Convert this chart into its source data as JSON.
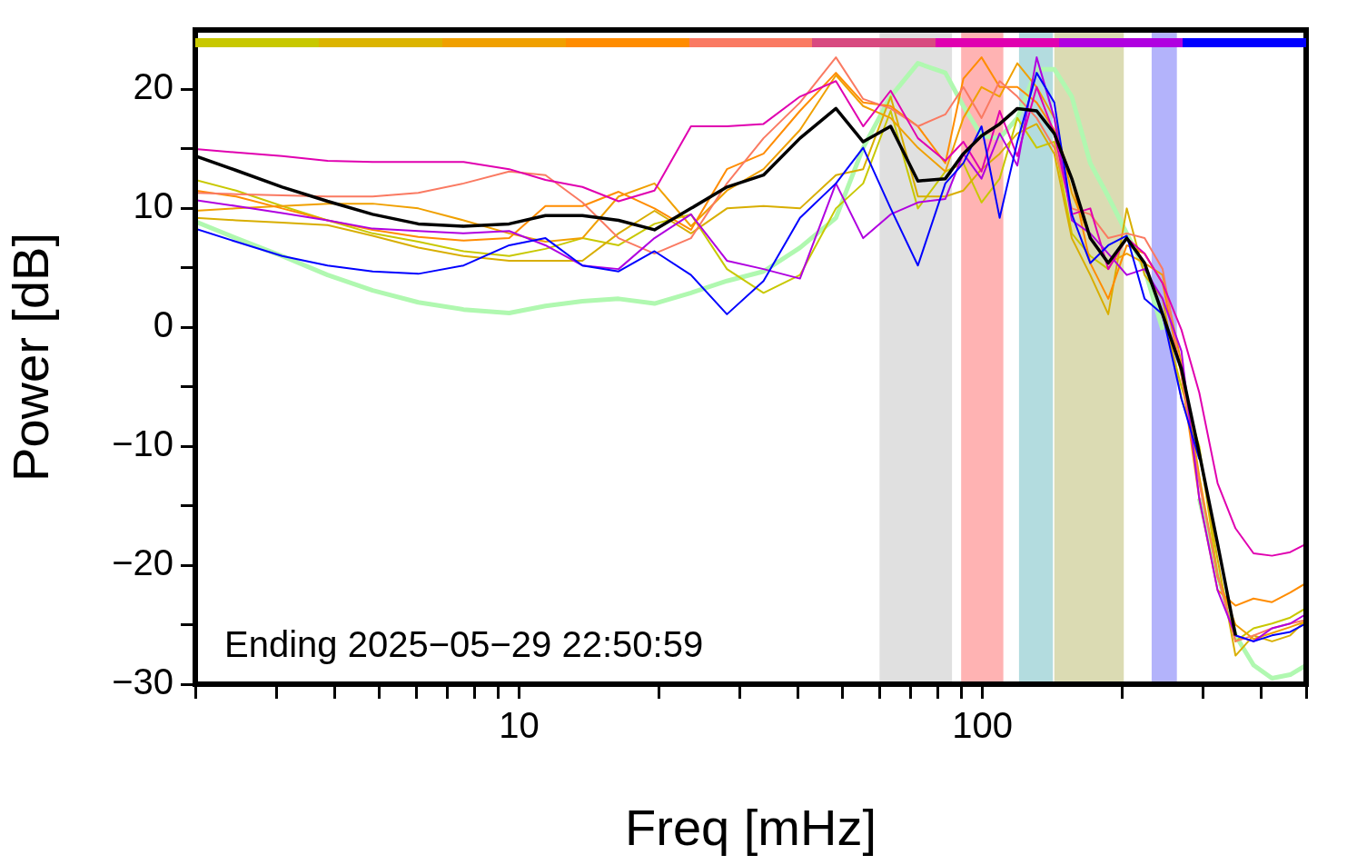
{
  "chart_data": {
    "type": "line",
    "xlabel": "Freq [mHz]",
    "ylabel": "Power [dB]",
    "log": "x",
    "grid": false,
    "legend": false,
    "marker": "none",
    "line_style": "solid",
    "annotations": [
      "Ending 2025−05−29 22:50:59"
    ],
    "xlim": [
      2,
      500
    ],
    "xticks": [
      {
        "value": 2,
        "label": null
      },
      {
        "value": 3,
        "label": null
      },
      {
        "value": 4,
        "label": null
      },
      {
        "value": 5,
        "label": null
      },
      {
        "value": 6,
        "label": null
      },
      {
        "value": 7,
        "label": null
      },
      {
        "value": 8,
        "label": null
      },
      {
        "value": 9,
        "label": null
      },
      10,
      {
        "value": 20,
        "label": null
      },
      {
        "value": 30,
        "label": null
      },
      {
        "value": 40,
        "label": null
      },
      {
        "value": 50,
        "label": null
      },
      {
        "value": 60,
        "label": null
      },
      {
        "value": 70,
        "label": null
      },
      {
        "value": 80,
        "label": null
      },
      {
        "value": 90,
        "label": null
      },
      100,
      {
        "value": 200,
        "label": null
      },
      {
        "value": 300,
        "label": null
      },
      {
        "value": 400,
        "label": null
      },
      {
        "value": 500,
        "label": null
      }
    ],
    "ylim": [
      -30,
      25
    ],
    "yticks": [
      {
        "value": -30,
        "label": "−30"
      },
      {
        "value": -25,
        "label": null
      },
      {
        "value": -20,
        "label": "−20"
      },
      {
        "value": -15,
        "label": null
      },
      {
        "value": -10,
        "label": "−10"
      },
      {
        "value": -5,
        "label": null
      },
      0,
      {
        "value": 5,
        "label": null
      },
      10,
      {
        "value": 15,
        "label": null
      },
      20
    ],
    "bands": [
      {
        "axis": "x",
        "from": 60,
        "to": 86,
        "color": "#e0e0e0"
      },
      {
        "axis": "x",
        "from": 90,
        "to": 111,
        "color": "#ffb3b3"
      },
      {
        "axis": "x",
        "from": 120,
        "to": 142,
        "color": "#b3dcdf"
      },
      {
        "axis": "x",
        "from": 143,
        "to": 202,
        "color": "#dbdbb3"
      },
      {
        "axis": "x",
        "from": 232,
        "to": 263,
        "color": "#b3b3fb"
      }
    ],
    "x": [
      2,
      2.45,
      3.08,
      3.86,
      4.83,
      6.06,
      7.59,
      9.52,
      11.4,
      13.7,
      16.4,
      19.6,
      23.5,
      28.1,
      33.7,
      40.4,
      48.3,
      55.3,
      63.4,
      72.6,
      83.2,
      91,
      99.6,
      109,
      119,
      131,
      143,
      156,
      171,
      187,
      205,
      224,
      245,
      269,
      294,
      322,
      352,
      385,
      422,
      462,
      500
    ],
    "series": [
      {
        "color": "#b0f8b0",
        "values": [
          8.9,
          7.5,
          6.0,
          4.4,
          3.1,
          2.1,
          1.5,
          1.2,
          1.8,
          2.2,
          2.4,
          2.0,
          2.9,
          3.9,
          4.7,
          6.7,
          9.2,
          15.1,
          19.4,
          22.2,
          21.4,
          18.6,
          16.1,
          15.9,
          17.6,
          21.7,
          21.7,
          19.4,
          13.8,
          11.0,
          7.9,
          4.9,
          -0.2,
          null,
          -14.4,
          -20.8,
          -25.9,
          -28.4,
          -29.5,
          -29.2,
          -28.4
        ]
      },
      {
        "color": "#c8c800",
        "values": [
          12.4,
          11.5,
          10.2,
          9.0,
          7.9,
          7.2,
          6.4,
          6.0,
          6.6,
          7.5,
          6.9,
          8.7,
          9.5,
          4.9,
          2.9,
          4.4,
          10.0,
          12.1,
          18.2,
          10.0,
          13.1,
          13.8,
          10.5,
          12.5,
          17.6,
          15.1,
          15.6,
          7.9,
          6.0,
          4.9,
          7.5,
          5.4,
          1.1,
          -5,
          -10,
          -20.8,
          -26.4,
          -25.3,
          -24.9,
          -24.4,
          -23.6
        ]
      },
      {
        "color": "#d8ae00",
        "values": [
          9.2,
          9.0,
          8.8,
          8.6,
          7.7,
          6.7,
          6.0,
          5.6,
          5.6,
          5.6,
          7.9,
          9.8,
          7.9,
          10.0,
          10.2,
          10.0,
          12.8,
          13.3,
          19.4,
          11.0,
          11.0,
          11.5,
          13.3,
          14.6,
          16.3,
          17.1,
          14.6,
          7.5,
          4.4,
          1.1,
          10.0,
          4.4,
          2.4,
          -6,
          -10.6,
          -19.5,
          -27.6,
          -25.9,
          -26.4,
          -25.9,
          -24.6
        ]
      },
      {
        "color": "#f0a000",
        "values": [
          9.8,
          10.0,
          10.2,
          10.4,
          10.4,
          10.0,
          9.0,
          7.9,
          7.2,
          7.5,
          11.0,
          12.1,
          8.5,
          11.5,
          13.3,
          16.6,
          21.2,
          18.6,
          17.6,
          15.1,
          13.1,
          17.6,
          20.2,
          19.4,
          22.2,
          20.2,
          17.6,
          11.3,
          7.5,
          5.4,
          6.2,
          5.4,
          4.4,
          -3,
          -12.5,
          -21,
          -25,
          -26.2,
          -25.7,
          -25.2,
          -24.7
        ]
      },
      {
        "color": "#ff8c00",
        "values": [
          11.5,
          11.0,
          10.0,
          9.0,
          8.2,
          7.6,
          7.3,
          7.5,
          10.2,
          10.2,
          11.4,
          10.0,
          8.2,
          13.3,
          14.6,
          18.2,
          21.4,
          18.9,
          18.6,
          16.9,
          13.8,
          20.9,
          22.7,
          20.2,
          20.2,
          18.9,
          16.6,
          12.5,
          5.4,
          2.4,
          6.9,
          6.2,
          3.7,
          -4,
          -14.4,
          -22.1,
          -23.4,
          -22.8,
          -23.1,
          -22.3,
          -21.5
        ]
      },
      {
        "color": "#fa7a62",
        "values": [
          11.3,
          11.2,
          11.1,
          11.0,
          11.0,
          11.3,
          12.1,
          13.1,
          12.8,
          10.5,
          7.5,
          6.2,
          7.5,
          12.1,
          15.9,
          18.9,
          22.7,
          19.2,
          18.4,
          16.9,
          17.9,
          20.2,
          17.6,
          20.7,
          19.4,
          17.6,
          15.1,
          10.0,
          9.5,
          7.5,
          7.9,
          7.5,
          4.9,
          -4,
          -13.1,
          -20.8,
          -26.4,
          -25.9,
          -25.3,
          -24.9,
          -24.6
        ]
      },
      {
        "color": "#e000b0",
        "values": [
          15.0,
          14.7,
          14.4,
          14.0,
          13.9,
          13.9,
          13.9,
          13.3,
          12.4,
          11.8,
          10.6,
          11.5,
          16.9,
          16.9,
          17.1,
          19.4,
          20.7,
          16.9,
          19.9,
          15.9,
          14.0,
          15.6,
          13.1,
          18.2,
          14.4,
          20.2,
          16.3,
          9.5,
          10.0,
          4.9,
          7.5,
          6.2,
          3.7,
          -0.2,
          -5.5,
          -13.1,
          -16.9,
          -19.0,
          -19.2,
          -18.9,
          -18.2
        ]
      },
      {
        "color": "#b000e0",
        "values": [
          10.7,
          10.2,
          9.6,
          9.0,
          8.3,
          8.1,
          7.9,
          8.1,
          6.9,
          5.2,
          4.9,
          7.5,
          9.5,
          5.6,
          4.9,
          4.1,
          12.1,
          7.5,
          9.5,
          10.5,
          10.8,
          14.6,
          12.5,
          16.3,
          13.6,
          22.7,
          17.6,
          9.0,
          7.9,
          6.2,
          4.4,
          4.9,
          2.4,
          -2,
          -14.4,
          -22.1,
          -25.9,
          -26.4,
          -25.3,
          -24.9,
          -24.1
        ]
      },
      {
        "color": "#0000ff",
        "values": [
          8.3,
          7.2,
          6.0,
          5.2,
          4.7,
          4.5,
          5.2,
          6.9,
          7.5,
          5.2,
          4.7,
          6.4,
          4.4,
          1.1,
          3.9,
          9.2,
          12.1,
          15.1,
          10.0,
          5.2,
          12.1,
          13.8,
          16.9,
          9.2,
          15.6,
          21.4,
          18.9,
          9.5,
          5.4,
          6.9,
          7.7,
          2.4,
          1.1,
          -6,
          -11.1,
          null,
          -25.9,
          -26.4,
          -25.9,
          -25.6,
          -24.9
        ]
      },
      {
        "color": "#000000",
        "values": [
          14.4,
          13.2,
          11.8,
          10.6,
          9.5,
          8.7,
          8.5,
          8.7,
          9.4,
          9.4,
          9.0,
          8.2,
          10.0,
          11.8,
          12.8,
          15.9,
          18.4,
          15.6,
          16.9,
          12.3,
          12.5,
          14.6,
          16.1,
          17.1,
          18.4,
          18.2,
          16.3,
          12.5,
          7.5,
          5.4,
          7.5,
          5.4,
          1.1,
          -3.5,
          -10.6,
          -18.2,
          -25.9,
          null,
          null,
          null,
          null
        ]
      }
    ]
  }
}
